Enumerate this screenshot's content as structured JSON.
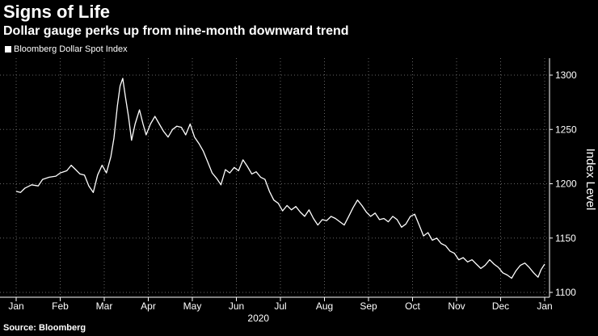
{
  "header": {
    "title": "Signs of Life",
    "subtitle": "Dollar gauge perks up from nine-month downward trend"
  },
  "footer": {
    "source": "Source: Bloomberg"
  },
  "colors": {
    "background": "#000000",
    "line": "#ffffff",
    "grid": "#666666"
  },
  "chart_data": {
    "type": "line",
    "title": "Signs of Life",
    "subtitle": "Dollar gauge perks up from nine-month downward trend",
    "ylabel": "Index Level",
    "xlabel": "2020",
    "ylim": [
      1100,
      1310
    ],
    "xlim": [
      0,
      12.2
    ],
    "yticks": [
      1100,
      1150,
      1200,
      1250,
      1300
    ],
    "xtick_labels": [
      "Jan",
      "Feb",
      "Mar",
      "Apr",
      "May",
      "Jun",
      "Jul",
      "Aug",
      "Sep",
      "Oct",
      "Nov",
      "Dec",
      "Jan"
    ],
    "xtick_positions": [
      0,
      1,
      2,
      3,
      4,
      5,
      6,
      7,
      8,
      9,
      10,
      11,
      12
    ],
    "grid": true,
    "legend_position": "top-left",
    "series": [
      {
        "name": "Bloomberg Dollar Spot Index",
        "x": [
          0,
          0.1,
          0.2,
          0.35,
          0.5,
          0.6,
          0.75,
          0.9,
          1.0,
          1.15,
          1.25,
          1.35,
          1.45,
          1.55,
          1.65,
          1.75,
          1.85,
          1.95,
          2.05,
          2.15,
          2.22,
          2.3,
          2.36,
          2.42,
          2.48,
          2.55,
          2.62,
          2.7,
          2.8,
          2.88,
          2.95,
          3.05,
          3.15,
          3.25,
          3.35,
          3.45,
          3.55,
          3.65,
          3.75,
          3.85,
          3.95,
          4.05,
          4.15,
          4.25,
          4.35,
          4.45,
          4.55,
          4.65,
          4.75,
          4.85,
          4.95,
          5.05,
          5.15,
          5.25,
          5.35,
          5.45,
          5.55,
          5.65,
          5.75,
          5.85,
          5.95,
          6.05,
          6.15,
          6.25,
          6.35,
          6.45,
          6.55,
          6.65,
          6.75,
          6.85,
          6.95,
          7.05,
          7.15,
          7.25,
          7.35,
          7.45,
          7.55,
          7.65,
          7.75,
          7.85,
          7.95,
          8.05,
          8.15,
          8.25,
          8.35,
          8.45,
          8.55,
          8.65,
          8.75,
          8.85,
          8.95,
          9.05,
          9.15,
          9.25,
          9.35,
          9.45,
          9.55,
          9.65,
          9.75,
          9.85,
          9.95,
          10.05,
          10.15,
          10.25,
          10.35,
          10.45,
          10.55,
          10.65,
          10.75,
          10.85,
          10.95,
          11.05,
          11.15,
          11.25,
          11.35,
          11.45,
          11.55,
          11.65,
          11.75,
          11.85,
          11.92,
          12.0
        ],
        "values": [
          1193,
          1192,
          1196,
          1199,
          1198,
          1204,
          1206,
          1207,
          1210,
          1212,
          1217,
          1213,
          1209,
          1208,
          1198,
          1192,
          1208,
          1217,
          1210,
          1225,
          1242,
          1272,
          1290,
          1297,
          1280,
          1262,
          1240,
          1255,
          1268,
          1255,
          1245,
          1255,
          1262,
          1255,
          1248,
          1243,
          1250,
          1253,
          1252,
          1245,
          1255,
          1243,
          1237,
          1230,
          1220,
          1210,
          1205,
          1199,
          1213,
          1210,
          1215,
          1212,
          1222,
          1216,
          1209,
          1211,
          1206,
          1204,
          1193,
          1185,
          1182,
          1175,
          1180,
          1176,
          1179,
          1174,
          1170,
          1176,
          1168,
          1162,
          1167,
          1166,
          1170,
          1168,
          1165,
          1162,
          1170,
          1178,
          1185,
          1180,
          1174,
          1170,
          1173,
          1167,
          1168,
          1165,
          1170,
          1167,
          1160,
          1163,
          1170,
          1172,
          1162,
          1152,
          1155,
          1148,
          1150,
          1145,
          1143,
          1138,
          1136,
          1130,
          1132,
          1128,
          1130,
          1126,
          1122,
          1125,
          1130,
          1126,
          1123,
          1118,
          1116,
          1113,
          1120,
          1125,
          1127,
          1123,
          1118,
          1114,
          1121,
          1126
        ]
      }
    ]
  }
}
